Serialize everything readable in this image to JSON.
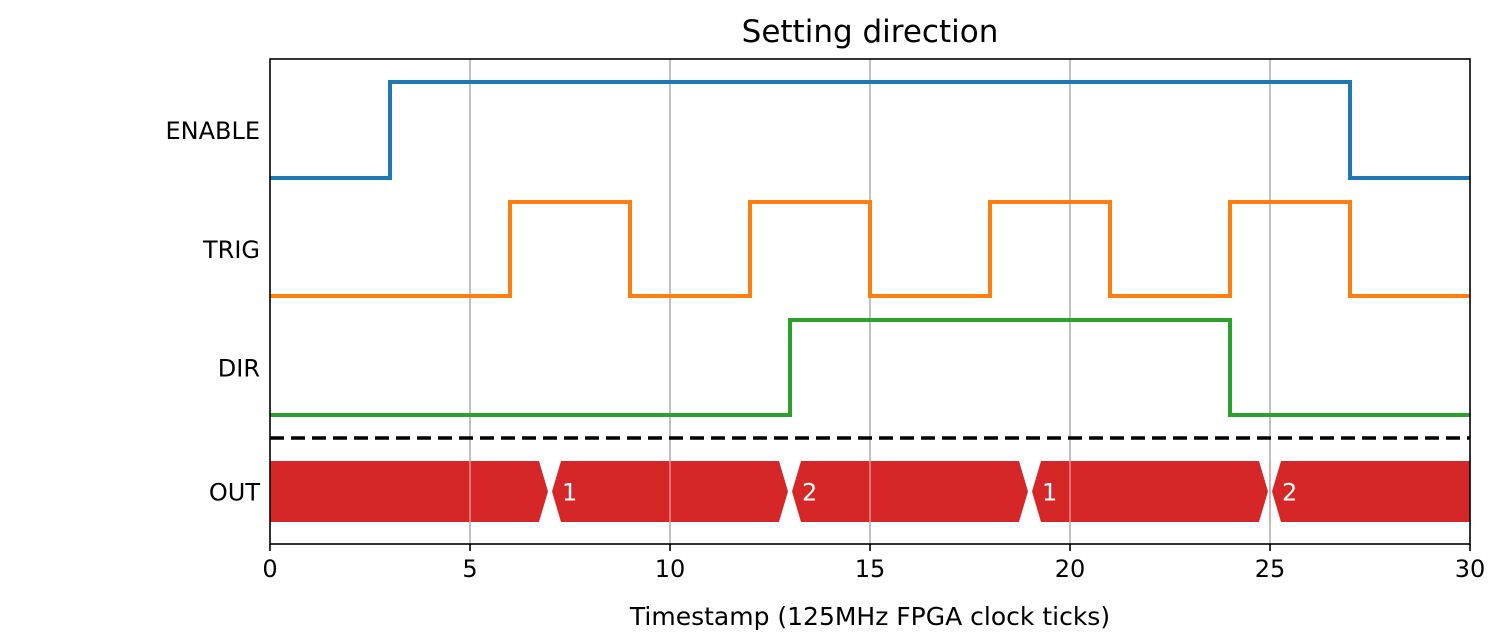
{
  "chart_data": {
    "type": "line",
    "subtype": "timing-diagram",
    "title": "Setting direction",
    "xlabel": "Timestamp (125MHz FPGA clock ticks)",
    "ylabel": "",
    "xlim": [
      0,
      30
    ],
    "x_ticks": [
      0,
      5,
      10,
      15,
      20,
      25,
      30
    ],
    "grid": "vertical",
    "series": [
      {
        "name": "ENABLE",
        "color": "#1f77b4",
        "x": [
          0,
          3,
          27,
          30
        ],
        "values": [
          0,
          1,
          0,
          0
        ]
      },
      {
        "name": "TRIG",
        "color": "#ff7f0e",
        "x": [
          0,
          6,
          9,
          12,
          15,
          18,
          21,
          24,
          27,
          30
        ],
        "values": [
          0,
          1,
          0,
          1,
          0,
          1,
          0,
          1,
          0,
          0
        ]
      },
      {
        "name": "DIR",
        "color": "#2ca02c",
        "x": [
          0,
          13,
          24,
          30
        ],
        "values": [
          0,
          1,
          0,
          0
        ]
      }
    ],
    "separator": {
      "style": "dashed",
      "color": "#000000"
    },
    "bus": {
      "name": "OUT",
      "color": "#d62728",
      "transitions": [
        7,
        13,
        19,
        25
      ],
      "segments": [
        {
          "start": 0,
          "end": 7,
          "label": ""
        },
        {
          "start": 7,
          "end": 13,
          "label": "1"
        },
        {
          "start": 13,
          "end": 19,
          "label": "2"
        },
        {
          "start": 19,
          "end": 25,
          "label": "1"
        },
        {
          "start": 25,
          "end": 30,
          "label": "2"
        }
      ]
    }
  }
}
